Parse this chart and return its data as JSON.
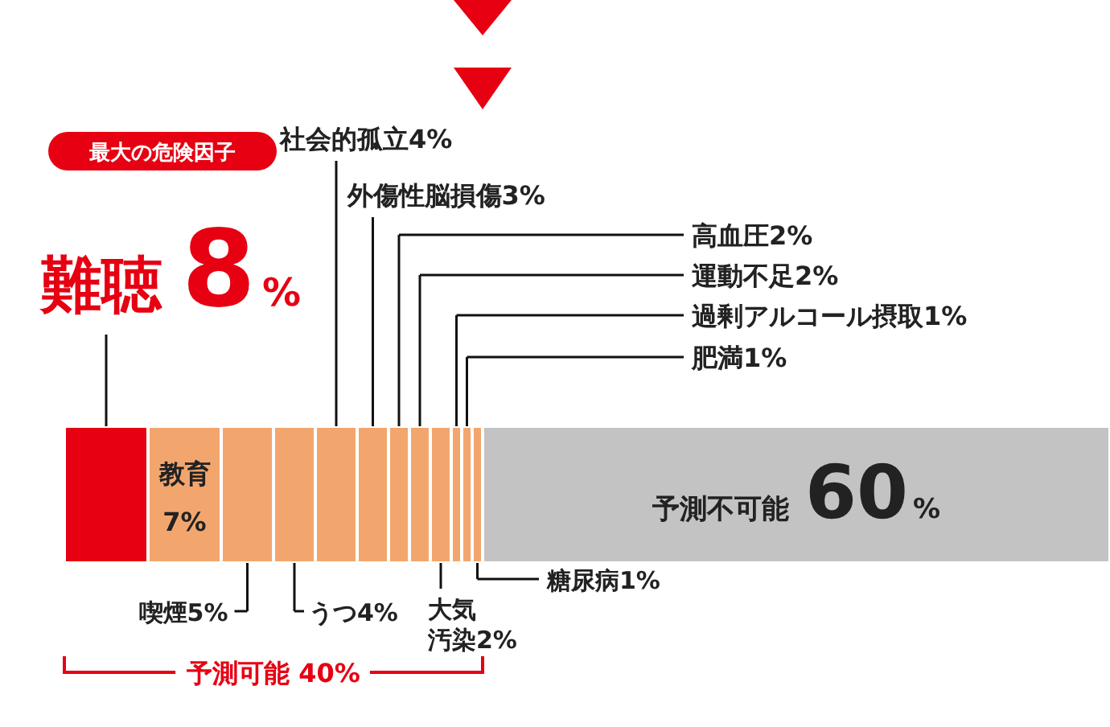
{
  "chart_data": {
    "type": "bar",
    "stacked": true,
    "orientation": "horizontal",
    "categories": [
      null
    ],
    "series": [
      {
        "name": "難聴",
        "color": "#e60012",
        "values": [
          8
        ],
        "value_labels": [
          "8%"
        ]
      },
      {
        "name": "教育",
        "color": "#f2a66e",
        "values": [
          7
        ],
        "value_labels": [
          "7%"
        ]
      },
      {
        "name": "喫煙",
        "color": "#f2a66e",
        "values": [
          5
        ],
        "value_labels": [
          "5%"
        ]
      },
      {
        "name": "うつ",
        "color": "#f2a66e",
        "values": [
          4
        ],
        "value_labels": [
          "4%"
        ]
      },
      {
        "name": "社会的孤立",
        "color": "#f2a66e",
        "values": [
          4
        ],
        "value_labels": [
          "4%"
        ]
      },
      {
        "name": "外傷性脳損傷",
        "color": "#f2a66e",
        "values": [
          3
        ],
        "value_labels": [
          "3%"
        ]
      },
      {
        "name": "高血圧",
        "color": "#f2a66e",
        "values": [
          2
        ],
        "value_labels": [
          "2%"
        ]
      },
      {
        "name": "運動不足",
        "color": "#f2a66e",
        "values": [
          2
        ],
        "value_labels": [
          "2%"
        ]
      },
      {
        "name": "大気汚染",
        "color": "#f2a66e",
        "values": [
          2
        ],
        "value_labels": [
          "2%"
        ]
      },
      {
        "name": "過剰アルコール摂取",
        "color": "#f2a66e",
        "values": [
          1
        ],
        "value_labels": [
          "1%"
        ]
      },
      {
        "name": "肥満",
        "color": "#f2a66e",
        "values": [
          1
        ],
        "value_labels": [
          "1%"
        ]
      },
      {
        "name": "糖尿病",
        "color": "#f2a66e",
        "values": [
          1
        ],
        "value_labels": [
          "1%"
        ]
      },
      {
        "name": "予測不可能",
        "color": "#c3c3c3",
        "values": [
          60
        ],
        "value_labels": [
          "60%"
        ]
      }
    ],
    "annotations": [
      "最大の危険因子",
      "予測可能 40%"
    ]
  }
}
